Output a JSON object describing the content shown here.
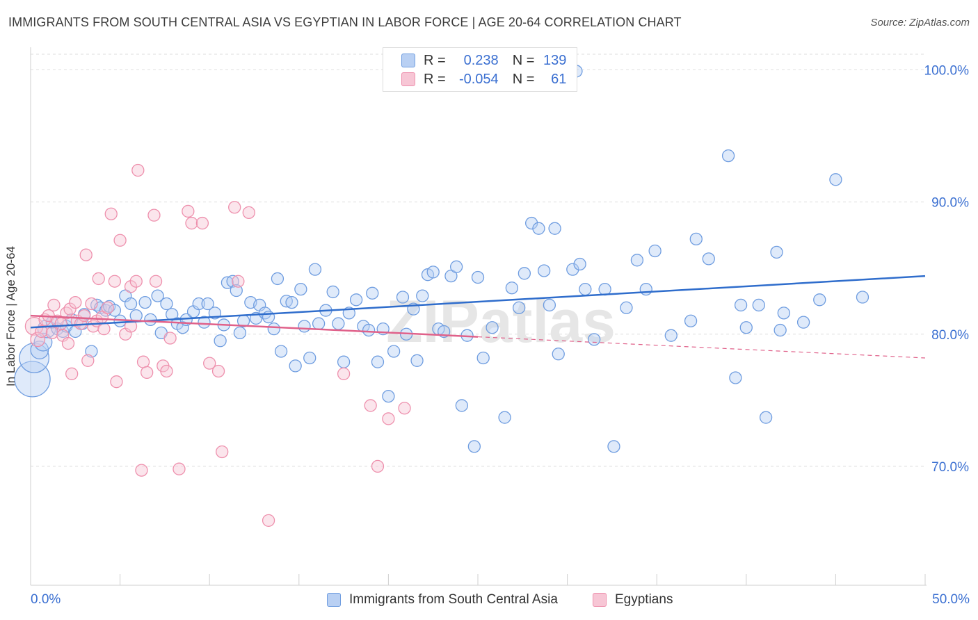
{
  "title": "IMMIGRANTS FROM SOUTH CENTRAL ASIA VS EGYPTIAN IN LABOR FORCE | AGE 20-64 CORRELATION CHART",
  "source": "Source: ZipAtlas.com",
  "watermark": "ZIPatlas",
  "legend": {
    "blue": {
      "r_label": "R =",
      "r_value": "0.238",
      "n_label": "N =",
      "n_value": "139"
    },
    "pink": {
      "r_label": "R =",
      "r_value": "-0.054",
      "n_label": "N =",
      "n_value": "61"
    }
  },
  "colors": {
    "blue": "#6f9de0",
    "blue_fill": "#b9d0f3",
    "blue_line": "#2f6dcc",
    "pink": "#ee90ad",
    "pink_fill": "#f7c6d5",
    "pink_line": "#e0618a",
    "axis_text": "#3a6fd1",
    "grid": "#dedede"
  },
  "chart_data": {
    "type": "scatter",
    "title": "IMMIGRANTS FROM SOUTH CENTRAL ASIA VS EGYPTIAN IN LABOR FORCE | AGE 20-64 CORRELATION CHART",
    "xlabel": "",
    "ylabel": "In Labor Force | Age 20-64",
    "xlim": [
      0,
      50
    ],
    "ylim": [
      61,
      101.5
    ],
    "x_tick_labels": [
      "0.0%",
      "50.0%"
    ],
    "y_ticks": [
      70,
      80,
      90,
      100
    ],
    "y_tick_labels": [
      "70.0%",
      "80.0%",
      "90.0%",
      "100.0%"
    ],
    "grid": true,
    "legend_position": "top-center",
    "series": [
      {
        "name": "Immigrants from South Central Asia",
        "color": "#6f9de0",
        "trend": {
          "x": [
            0,
            50
          ],
          "y": [
            80.5,
            84.4
          ]
        },
        "points": [
          [
            0.1,
            76.6,
            3
          ],
          [
            0.2,
            78.2,
            2.5
          ],
          [
            0.5,
            78.8,
            1.5
          ],
          [
            0.7,
            79.4,
            1.5
          ],
          [
            0.9,
            80.4,
            1.5
          ],
          [
            1.2,
            80.9,
            1
          ],
          [
            1.5,
            80.4,
            1
          ],
          [
            1.8,
            80.2,
            1
          ],
          [
            2.0,
            80.6,
            1
          ],
          [
            2.3,
            81.1,
            1
          ],
          [
            2.5,
            80.2,
            1
          ],
          [
            2.9,
            80.8,
            1
          ],
          [
            3.0,
            81.5,
            1
          ],
          [
            3.4,
            78.7,
            1
          ],
          [
            3.7,
            82.2,
            1
          ],
          [
            3.9,
            82.0,
            1
          ],
          [
            4.2,
            81.8,
            1
          ],
          [
            4.4,
            82.1,
            1
          ],
          [
            4.7,
            81.8,
            1
          ],
          [
            5.0,
            81.0,
            1
          ],
          [
            5.3,
            82.9,
            1
          ],
          [
            5.6,
            82.3,
            1
          ],
          [
            5.9,
            81.4,
            1
          ],
          [
            6.4,
            82.4,
            1
          ],
          [
            6.7,
            81.1,
            1
          ],
          [
            7.1,
            82.9,
            1
          ],
          [
            7.3,
            80.1,
            1
          ],
          [
            7.6,
            82.3,
            1
          ],
          [
            7.9,
            81.5,
            1
          ],
          [
            8.2,
            80.8,
            1
          ],
          [
            8.5,
            80.5,
            1
          ],
          [
            8.7,
            81.1,
            1
          ],
          [
            9.1,
            81.7,
            1
          ],
          [
            9.4,
            82.3,
            1
          ],
          [
            9.7,
            80.9,
            1
          ],
          [
            9.9,
            82.3,
            1
          ],
          [
            10.3,
            81.6,
            1
          ],
          [
            10.6,
            79.5,
            1
          ],
          [
            10.8,
            80.7,
            1
          ],
          [
            11.0,
            83.9,
            1
          ],
          [
            11.3,
            84.0,
            1
          ],
          [
            11.5,
            83.3,
            1
          ],
          [
            11.7,
            80.1,
            1
          ],
          [
            11.9,
            81.0,
            1
          ],
          [
            12.3,
            82.4,
            1
          ],
          [
            12.6,
            81.2,
            1
          ],
          [
            12.8,
            82.2,
            1
          ],
          [
            13.1,
            81.6,
            1
          ],
          [
            13.3,
            81.3,
            1
          ],
          [
            13.6,
            80.4,
            1
          ],
          [
            13.8,
            84.2,
            1
          ],
          [
            14.0,
            78.7,
            1
          ],
          [
            14.3,
            82.5,
            1
          ],
          [
            14.6,
            82.4,
            1
          ],
          [
            14.8,
            77.6,
            1
          ],
          [
            15.1,
            83.4,
            1
          ],
          [
            15.3,
            80.6,
            1
          ],
          [
            15.6,
            78.2,
            1
          ],
          [
            15.9,
            84.9,
            1
          ],
          [
            16.1,
            80.8,
            1
          ],
          [
            16.5,
            81.8,
            1
          ],
          [
            16.9,
            83.2,
            1
          ],
          [
            17.2,
            80.8,
            1
          ],
          [
            17.5,
            77.9,
            1
          ],
          [
            17.8,
            81.6,
            1
          ],
          [
            18.2,
            82.6,
            1
          ],
          [
            18.6,
            80.6,
            1
          ],
          [
            18.9,
            80.3,
            1
          ],
          [
            19.1,
            83.1,
            1
          ],
          [
            19.4,
            77.9,
            1
          ],
          [
            19.7,
            80.4,
            1
          ],
          [
            20.0,
            75.3,
            1
          ],
          [
            20.3,
            78.7,
            1
          ],
          [
            20.8,
            82.8,
            1
          ],
          [
            21.0,
            80.0,
            1
          ],
          [
            21.4,
            81.9,
            1
          ],
          [
            21.6,
            78.0,
            1
          ],
          [
            21.9,
            82.9,
            1
          ],
          [
            22.2,
            84.5,
            1
          ],
          [
            22.5,
            84.7,
            1
          ],
          [
            22.8,
            80.4,
            1
          ],
          [
            23.1,
            80.2,
            1
          ],
          [
            23.5,
            84.4,
            1
          ],
          [
            23.8,
            85.1,
            1
          ],
          [
            24.1,
            74.6,
            1
          ],
          [
            24.4,
            79.9,
            1
          ],
          [
            24.8,
            71.5,
            1
          ],
          [
            25.0,
            84.3,
            1
          ],
          [
            25.3,
            78.2,
            1
          ],
          [
            25.8,
            80.5,
            1
          ],
          [
            26.5,
            73.7,
            1
          ],
          [
            26.9,
            83.5,
            1
          ],
          [
            27.3,
            82.0,
            1
          ],
          [
            27.6,
            84.6,
            1
          ],
          [
            28.0,
            88.4,
            1
          ],
          [
            28.4,
            88.0,
            1
          ],
          [
            28.7,
            84.8,
            1
          ],
          [
            29.0,
            82.2,
            1
          ],
          [
            29.3,
            88.0,
            1
          ],
          [
            29.5,
            78.5,
            1
          ],
          [
            30.3,
            84.9,
            1
          ],
          [
            30.7,
            85.3,
            1
          ],
          [
            31.0,
            83.4,
            1
          ],
          [
            31.5,
            79.6,
            1
          ],
          [
            32.1,
            83.4,
            1
          ],
          [
            32.6,
            71.5,
            1
          ],
          [
            33.3,
            82.0,
            1
          ],
          [
            33.9,
            85.6,
            1
          ],
          [
            34.4,
            83.4,
            1
          ],
          [
            34.9,
            86.3,
            1
          ],
          [
            35.8,
            79.9,
            1
          ],
          [
            36.9,
            81.0,
            1
          ],
          [
            37.2,
            87.2,
            1
          ],
          [
            37.9,
            85.7,
            1
          ],
          [
            39.0,
            93.5,
            1
          ],
          [
            39.4,
            76.7,
            1
          ],
          [
            39.7,
            82.2,
            1
          ],
          [
            40.0,
            80.5,
            1
          ],
          [
            40.7,
            82.2,
            1
          ],
          [
            41.1,
            73.7,
            1
          ],
          [
            41.7,
            86.2,
            1
          ],
          [
            41.9,
            80.3,
            1
          ],
          [
            42.1,
            81.6,
            1
          ],
          [
            43.2,
            80.9,
            1
          ],
          [
            44.1,
            82.6,
            1
          ],
          [
            45.0,
            91.7,
            1
          ],
          [
            46.5,
            82.8,
            1
          ],
          [
            30.5,
            99.9,
            1
          ]
        ]
      },
      {
        "name": "Egyptians",
        "color": "#ee90ad",
        "trend": {
          "x": [
            0,
            25
          ],
          "y": [
            81.4,
            79.8
          ]
        },
        "trend_dashed": {
          "x": [
            25,
            50
          ],
          "y": [
            79.8,
            78.2
          ]
        },
        "points": [
          [
            0.2,
            80.6,
            1.5
          ],
          [
            0.4,
            79.6,
            1.2
          ],
          [
            0.6,
            80.2,
            1
          ],
          [
            0.8,
            81.1,
            1
          ],
          [
            1.0,
            81.4,
            1
          ],
          [
            1.2,
            80.1,
            1
          ],
          [
            1.3,
            82.2,
            1
          ],
          [
            1.5,
            81.0,
            1
          ],
          [
            1.7,
            80.8,
            1
          ],
          [
            1.8,
            79.9,
            1
          ],
          [
            2.0,
            81.6,
            1
          ],
          [
            2.2,
            81.9,
            1
          ],
          [
            2.3,
            77.0,
            1
          ],
          [
            2.5,
            82.4,
            1
          ],
          [
            2.6,
            81.0,
            1
          ],
          [
            2.8,
            80.8,
            1
          ],
          [
            3.0,
            81.4,
            1
          ],
          [
            3.1,
            86.0,
            1
          ],
          [
            3.2,
            78.0,
            1
          ],
          [
            3.4,
            82.3,
            1
          ],
          [
            3.5,
            80.6,
            1
          ],
          [
            3.7,
            81.0,
            1
          ],
          [
            3.8,
            84.2,
            1
          ],
          [
            4.0,
            81.3,
            1
          ],
          [
            4.1,
            80.4,
            1
          ],
          [
            4.3,
            82.0,
            1
          ],
          [
            4.5,
            89.1,
            1
          ],
          [
            4.7,
            84.0,
            1
          ],
          [
            4.8,
            76.4,
            1
          ],
          [
            5.0,
            87.1,
            1
          ],
          [
            5.3,
            80.0,
            1
          ],
          [
            5.6,
            83.6,
            1
          ],
          [
            5.9,
            84.0,
            1
          ],
          [
            6.0,
            92.4,
            1
          ],
          [
            6.3,
            77.9,
            1
          ],
          [
            6.5,
            77.1,
            1
          ],
          [
            6.9,
            89.0,
            1
          ],
          [
            7.0,
            84.0,
            1
          ],
          [
            7.4,
            77.6,
            1
          ],
          [
            7.6,
            77.2,
            1
          ],
          [
            7.8,
            79.7,
            1
          ],
          [
            8.3,
            69.8,
            1
          ],
          [
            8.8,
            89.3,
            1
          ],
          [
            9.0,
            88.4,
            1
          ],
          [
            9.6,
            88.4,
            1
          ],
          [
            10.0,
            77.8,
            1
          ],
          [
            10.5,
            77.2,
            1
          ],
          [
            10.7,
            71.1,
            1
          ],
          [
            11.4,
            89.6,
            1
          ],
          [
            11.6,
            84.0,
            1
          ],
          [
            12.2,
            89.2,
            1
          ],
          [
            13.3,
            65.9,
            1
          ],
          [
            17.5,
            77.0,
            1
          ],
          [
            19.0,
            74.6,
            1
          ],
          [
            19.4,
            70.0,
            1
          ],
          [
            20.0,
            73.6,
            1
          ],
          [
            20.9,
            74.4,
            1
          ],
          [
            21.2,
            100.0,
            1
          ],
          [
            6.2,
            69.7,
            1
          ],
          [
            5.6,
            80.6,
            1
          ],
          [
            2.1,
            79.3,
            1
          ]
        ]
      }
    ]
  },
  "bottom_legend": {
    "blue_label": "Immigrants from South Central Asia",
    "pink_label": "Egyptians"
  }
}
